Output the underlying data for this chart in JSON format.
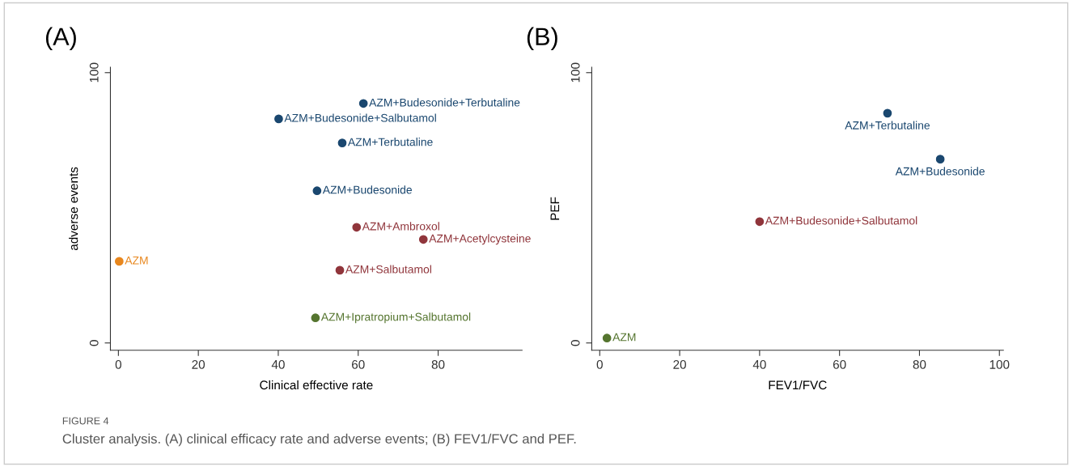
{
  "chart_data": [
    {
      "type": "scatter",
      "title": "(A)",
      "xlabel": "Clinical effective rate",
      "ylabel": "adverse events",
      "xlim": [
        -2,
        101
      ],
      "ylim": [
        -2.7,
        102
      ],
      "xticks": [
        0,
        20,
        40,
        60,
        80
      ],
      "yticks": [
        0,
        100
      ],
      "grid": false,
      "marker": "circle",
      "series": [
        {
          "color": "#1a476f",
          "x": [
            61.3,
            40.1,
            56.0,
            49.7
          ],
          "values": [
            88.6,
            82.9,
            74.0,
            56.3
          ],
          "value_labels": [
            "AZM+Budesonide+Terbutaline",
            "AZM+Budesonide+Salbutamol",
            "AZM+Terbutaline",
            "AZM+Budesonide"
          ]
        },
        {
          "color": "#90353b",
          "x": [
            59.6,
            76.3,
            55.4
          ],
          "values": [
            42.8,
            38.3,
            26.9
          ],
          "value_labels": [
            "AZM+Ambroxol",
            "AZM+Acetylcysteine",
            "AZM+Salbutamol"
          ]
        },
        {
          "color": "#e8871e",
          "x": [
            0.2
          ],
          "values": [
            30.2
          ],
          "value_labels": [
            "AZM"
          ]
        },
        {
          "color": "#55752f",
          "x": [
            49.3
          ],
          "values": [
            9.3
          ],
          "value_labels": [
            "AZM+Ipratropium+Salbutamol"
          ]
        }
      ],
      "annotations": [
        "FIGURE 4",
        "Cluster analysis. (A) clinical efficacy rate and adverse events; (B) FEV1/FVC and PEF."
      ]
    },
    {
      "type": "scatter",
      "title": "(B)",
      "xlabel": "FEV1/FVC",
      "ylabel": "PEF",
      "xlim": [
        -2,
        101
      ],
      "ylim": [
        -2.7,
        102
      ],
      "xticks": [
        0,
        20,
        40,
        60,
        80,
        100
      ],
      "yticks": [
        0,
        100
      ],
      "grid": false,
      "marker": "circle",
      "series": [
        {
          "color": "#1a476f",
          "x": [
            72.0,
            85.2
          ],
          "values": [
            85.0,
            68.0
          ],
          "value_labels": [
            "AZM+Terbutaline",
            "AZM+Budesonide"
          ]
        },
        {
          "color": "#90353b",
          "x": [
            40.0
          ],
          "values": [
            44.9
          ],
          "value_labels": [
            "AZM+Budesonide+Salbutamol"
          ]
        },
        {
          "color": "#55752f",
          "x": [
            1.8
          ],
          "values": [
            1.8
          ],
          "value_labels": [
            "AZM"
          ]
        }
      ]
    }
  ]
}
